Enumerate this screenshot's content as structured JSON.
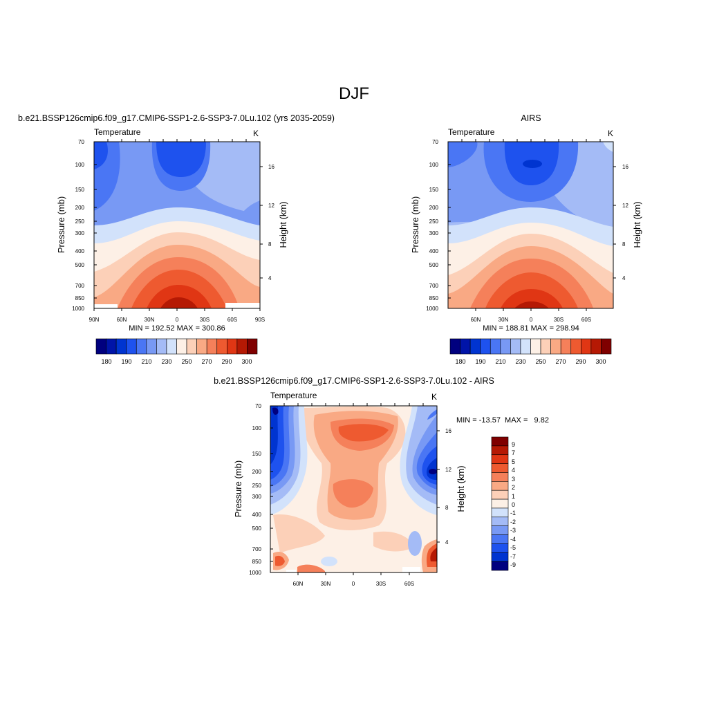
{
  "figure": {
    "title": "DJF"
  },
  "chart_data": [
    {
      "type": "heatmap",
      "title": "b.e21.BSSP126cmip6.f09_g17.CMIP6-SSP1-2.6-SSP3-7.0Lu.102 (yrs 2035-2059)",
      "variable_label": "Temperature",
      "units_label": "K",
      "ylabel": "Pressure (mb)",
      "right_axis_label": "Height (km)",
      "x_ticks": [
        "90N",
        "60N",
        "30N",
        "0",
        "30S",
        "60S",
        "90S"
      ],
      "y_ticks": [
        "70",
        "100",
        "150",
        "200",
        "250",
        "300",
        "400",
        "500",
        "700",
        "850",
        "1000"
      ],
      "right_ticks": [
        "16",
        "12",
        "8",
        "4"
      ],
      "min_max_text": "MIN = 192.52  MAX = 300.86",
      "min": 192.52,
      "max": 300.86,
      "colorbar_labels": [
        "180",
        "190",
        "210",
        "230",
        "250",
        "270",
        "290",
        "300"
      ],
      "colorbar_orientation": "horizontal"
    },
    {
      "type": "heatmap",
      "title": "AIRS",
      "variable_label": "Temperature",
      "units_label": "K",
      "ylabel": "Pressure (mb)",
      "right_axis_label": "Height (km)",
      "x_ticks": [
        "60N",
        "30N",
        "0",
        "30S",
        "60S"
      ],
      "y_ticks": [
        "70",
        "100",
        "150",
        "200",
        "250",
        "300",
        "400",
        "500",
        "700",
        "850",
        "1000"
      ],
      "right_ticks": [
        "16",
        "12",
        "8",
        "4"
      ],
      "min_max_text": "MIN = 188.81  MAX = 298.94",
      "min": 188.81,
      "max": 298.94,
      "colorbar_labels": [
        "180",
        "190",
        "210",
        "230",
        "250",
        "270",
        "290",
        "300"
      ],
      "colorbar_orientation": "horizontal"
    },
    {
      "type": "heatmap",
      "title": "b.e21.BSSP126cmip6.f09_g17.CMIP6-SSP1-2.6-SSP3-7.0Lu.102 - AIRS",
      "variable_label": "Temperature",
      "units_label": "K",
      "ylabel": "Pressure (mb)",
      "right_axis_label": "Height (km)",
      "x_ticks": [
        "60N",
        "30N",
        "0",
        "30S",
        "60S"
      ],
      "y_ticks": [
        "70",
        "100",
        "150",
        "200",
        "250",
        "300",
        "400",
        "500",
        "700",
        "850",
        "1000"
      ],
      "right_ticks": [
        "16",
        "12",
        "8",
        "4"
      ],
      "min_max_text": "MIN = -13.57  MAX =   9.82",
      "min": -13.57,
      "max": 9.82,
      "colorbar_labels": [
        "9",
        "7",
        "5",
        "4",
        "3",
        "2",
        "1",
        "0",
        "-1",
        "-2",
        "-3",
        "-4",
        "-5",
        "-7",
        "-9"
      ],
      "colorbar_orientation": "vertical"
    }
  ],
  "palettes": {
    "absolute": [
      "#00007f",
      "#0014a8",
      "#0034d0",
      "#1e52ee",
      "#4a76f4",
      "#7899f4",
      "#a4bbf6",
      "#d2e2fb",
      "#fdf0e6",
      "#fcd0b8",
      "#f9a984",
      "#f5805a",
      "#ee5a30",
      "#e03614",
      "#b51904",
      "#7f0000"
    ],
    "difference": [
      "#7f0000",
      "#b51904",
      "#e03614",
      "#ee5a30",
      "#f5805a",
      "#f9a984",
      "#fcd0b8",
      "#fdf0e6",
      "#d2e2fb",
      "#a4bbf6",
      "#7899f4",
      "#4a76f4",
      "#1e52ee",
      "#0034d0",
      "#00007f"
    ]
  }
}
